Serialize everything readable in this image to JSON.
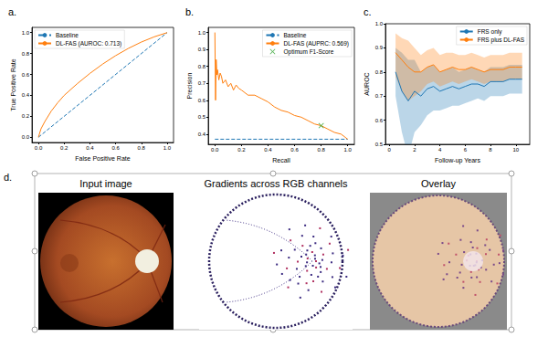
{
  "chart_data": [
    {
      "type": "line",
      "title": "a.",
      "x_label": "False Positive Rate",
      "y_label": "True Positive Rate",
      "xlim": [
        -0.05,
        1.05
      ],
      "ylim": [
        -0.05,
        1.05
      ],
      "xticks": [
        {
          "value": 0,
          "label": "0.0"
        },
        0.2,
        0.4,
        0.6,
        0.8,
        {
          "value": 1,
          "label": "1.0"
        }
      ],
      "yticks": [
        {
          "value": 0,
          "label": "0.0"
        },
        0.2,
        0.4,
        0.6,
        0.8,
        {
          "value": 1,
          "label": "1.0"
        }
      ],
      "legend": "upper left",
      "grid": false,
      "series": [
        {
          "name": "Baseline",
          "color": "#1f77b4",
          "line_style": "dashed",
          "x": [
            0,
            1
          ],
          "values": [
            0,
            1
          ]
        },
        {
          "name": "DL-FAS (AUROC: 0.713)",
          "color": "#ff7f0e",
          "line_style": "solid",
          "x": [
            0,
            0.02,
            0.05,
            0.1,
            0.15,
            0.2,
            0.3,
            0.4,
            0.5,
            0.6,
            0.7,
            0.8,
            0.9,
            1
          ],
          "values": [
            0,
            0.08,
            0.15,
            0.25,
            0.33,
            0.4,
            0.51,
            0.61,
            0.7,
            0.78,
            0.85,
            0.91,
            0.96,
            1
          ]
        }
      ]
    },
    {
      "type": "line",
      "title": "b.",
      "x_label": "Recall",
      "y_label": "Precision",
      "xlim": [
        -0.05,
        1.05
      ],
      "ylim": [
        0.34,
        1.03
      ],
      "xticks": [
        {
          "value": 0,
          "label": "0.0"
        },
        0.2,
        0.4,
        0.6,
        0.8,
        {
          "value": 1,
          "label": "1.0"
        }
      ],
      "yticks": [
        0.4,
        0.5,
        0.6,
        0.7,
        0.8,
        0.9,
        {
          "value": 1,
          "label": "1.0"
        }
      ],
      "legend": "upper right",
      "grid": false,
      "series": [
        {
          "name": "Baseline",
          "color": "#1f77b4",
          "line_style": "dashed",
          "x": [
            0,
            1
          ],
          "values": [
            0.37,
            0.37
          ]
        },
        {
          "name": "DL-FAS (AUPRC: 0.569)",
          "color": "#ff7f0e",
          "line_style": "solid",
          "x": [
            0,
            0.005,
            0.01,
            0.015,
            0.02,
            0.03,
            0.04,
            0.05,
            0.06,
            0.08,
            0.1,
            0.12,
            0.14,
            0.16,
            0.18,
            0.2,
            0.25,
            0.3,
            0.35,
            0.4,
            0.45,
            0.5,
            0.55,
            0.6,
            0.65,
            0.7,
            0.75,
            0.8,
            0.85,
            0.9,
            0.95,
            1
          ],
          "values": [
            1,
            0.6,
            0.84,
            0.75,
            0.78,
            0.72,
            0.76,
            0.74,
            0.7,
            0.72,
            0.68,
            0.7,
            0.66,
            0.69,
            0.67,
            0.66,
            0.63,
            0.63,
            0.61,
            0.59,
            0.56,
            0.54,
            0.53,
            0.51,
            0.5,
            0.48,
            0.46,
            0.45,
            0.43,
            0.41,
            0.4,
            0.37
          ]
        },
        {
          "name": "Optimum F1-Score",
          "type": "scatter",
          "color": "#2ca02c",
          "marker": "x",
          "x": [
            0.8
          ],
          "values": [
            0.45
          ]
        }
      ]
    },
    {
      "type": "line",
      "title": "c.",
      "x_label": "Follow-up Years",
      "y_label": "AUROC",
      "xlim": [
        -0.3,
        11.1
      ],
      "ylim": [
        0.5,
        1.0
      ],
      "xticks": [
        0,
        2,
        4,
        6,
        8,
        10
      ],
      "yticks": [
        0.5,
        0.6,
        0.7,
        0.8,
        0.9,
        {
          "value": 1,
          "label": "1.0"
        }
      ],
      "legend": "upper right",
      "grid": false,
      "x": [
        0.5,
        1,
        1.5,
        2,
        2.5,
        3,
        3.5,
        4,
        4.5,
        5,
        5.5,
        6,
        6.5,
        7,
        7.5,
        8,
        8.5,
        9,
        9.5,
        10,
        10.5
      ],
      "series": [
        {
          "name": "FRS only",
          "color": "#1f77b4",
          "line_style": "solid",
          "values": [
            0.8,
            0.72,
            0.68,
            0.72,
            0.7,
            0.73,
            0.74,
            0.72,
            0.73,
            0.74,
            0.73,
            0.74,
            0.75,
            0.75,
            0.74,
            0.76,
            0.76,
            0.76,
            0.77,
            0.77,
            0.77
          ],
          "lower": [
            0.7,
            0.55,
            0.45,
            0.55,
            0.58,
            0.62,
            0.64,
            0.64,
            0.65,
            0.66,
            0.66,
            0.67,
            0.68,
            0.69,
            0.68,
            0.7,
            0.7,
            0.7,
            0.71,
            0.71,
            0.71
          ],
          "upper": [
            0.9,
            0.88,
            0.85,
            0.85,
            0.8,
            0.82,
            0.83,
            0.8,
            0.81,
            0.82,
            0.8,
            0.81,
            0.82,
            0.81,
            0.8,
            0.82,
            0.82,
            0.82,
            0.83,
            0.83,
            0.83
          ]
        },
        {
          "name": "FRS plus DL-FAS",
          "color": "#ff7f0e",
          "line_style": "solid",
          "values": [
            0.88,
            0.85,
            0.82,
            0.8,
            0.8,
            0.82,
            0.83,
            0.8,
            0.81,
            0.82,
            0.81,
            0.81,
            0.82,
            0.81,
            0.8,
            0.81,
            0.81,
            0.81,
            0.82,
            0.82,
            0.82
          ],
          "lower": [
            0.78,
            0.72,
            0.68,
            0.7,
            0.72,
            0.75,
            0.76,
            0.74,
            0.75,
            0.76,
            0.75,
            0.76,
            0.77,
            0.76,
            0.75,
            0.76,
            0.76,
            0.76,
            0.77,
            0.77,
            0.77
          ],
          "upper": [
            0.96,
            0.94,
            0.93,
            0.9,
            0.87,
            0.89,
            0.9,
            0.87,
            0.88,
            0.88,
            0.87,
            0.87,
            0.88,
            0.87,
            0.86,
            0.87,
            0.87,
            0.87,
            0.88,
            0.88,
            0.88
          ]
        }
      ]
    }
  ],
  "image_panel": {
    "label": "d.",
    "titles": [
      "Input image",
      "Gradients across RGB channels",
      "Overlay"
    ]
  }
}
